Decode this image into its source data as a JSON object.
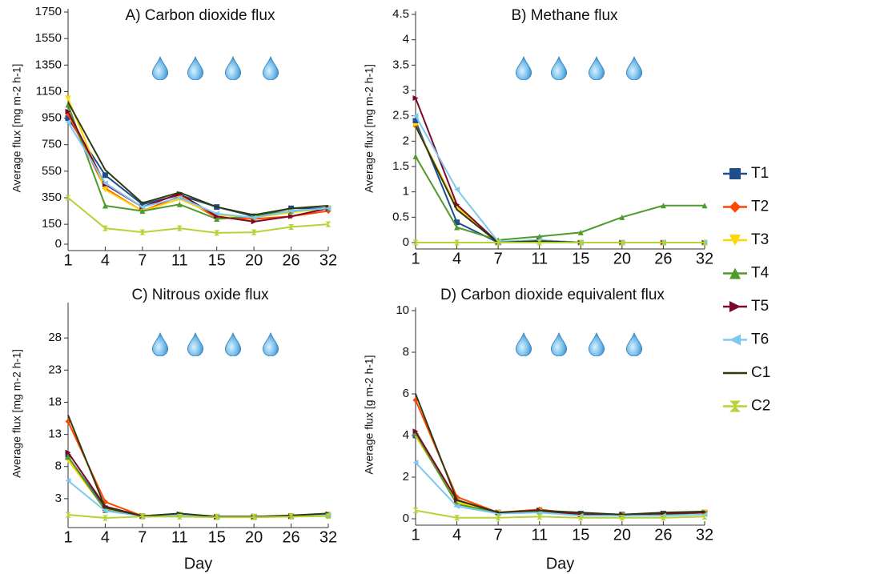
{
  "chart_data": [
    {
      "type": "line",
      "title": "A) Carbon dioxide flux",
      "y_label": "Average flux [mg m-2 h-1]",
      "categories": [
        "1",
        "4",
        "7",
        "11",
        "15",
        "20",
        "26",
        "32"
      ],
      "ylim": [
        0,
        1750
      ],
      "yticks": [
        0,
        150,
        350,
        550,
        750,
        950,
        1150,
        1350,
        1550,
        1750
      ],
      "series": [
        {
          "name": "T1",
          "color": "#1f4e8c",
          "marker": "square",
          "values": [
            950,
            520,
            300,
            370,
            280,
            210,
            270,
            270
          ]
        },
        {
          "name": "T2",
          "color": "#ff4500",
          "marker": "diamond",
          "values": [
            980,
            420,
            250,
            360,
            200,
            190,
            210,
            250
          ]
        },
        {
          "name": "T3",
          "color": "#ffd700",
          "marker": "triangle-down",
          "values": [
            1100,
            410,
            250,
            340,
            220,
            200,
            240,
            270
          ]
        },
        {
          "name": "T4",
          "color": "#4f9a2a",
          "marker": "triangle-up",
          "values": [
            1050,
            290,
            250,
            300,
            190,
            210,
            250,
            270
          ]
        },
        {
          "name": "T5",
          "color": "#7b0a2a",
          "marker": "triangle-right",
          "values": [
            1000,
            450,
            280,
            380,
            210,
            170,
            210,
            270
          ]
        },
        {
          "name": "T6",
          "color": "#7ec8f0",
          "marker": "triangle-left",
          "values": [
            920,
            460,
            280,
            350,
            230,
            200,
            250,
            270
          ]
        },
        {
          "name": "C1",
          "color": "#2d3a0e",
          "marker": "bowtie",
          "values": [
            1070,
            560,
            310,
            390,
            280,
            220,
            270,
            290
          ]
        },
        {
          "name": "C2",
          "color": "#b5d334",
          "marker": "hourglass",
          "values": [
            350,
            120,
            90,
            120,
            85,
            90,
            130,
            150
          ]
        }
      ]
    },
    {
      "type": "line",
      "title": "B) Methane flux",
      "y_label": "Average flux [mg m-2 h-1]",
      "categories": [
        "1",
        "4",
        "7",
        "11",
        "15",
        "20",
        "26",
        "32"
      ],
      "ylim": [
        0,
        4.5
      ],
      "yticks": [
        0,
        0.5,
        1,
        1.5,
        2,
        2.5,
        3,
        3.5,
        4,
        4.5
      ],
      "series": [
        {
          "name": "T1",
          "color": "#1f4e8c",
          "marker": "square",
          "values": [
            2.4,
            0.4,
            0,
            0.05,
            0,
            0,
            0,
            0
          ]
        },
        {
          "name": "T2",
          "color": "#ff4500",
          "marker": "diamond",
          "values": [
            2.3,
            0.7,
            0,
            0.02,
            0,
            0,
            0,
            0
          ]
        },
        {
          "name": "T3",
          "color": "#ffd700",
          "marker": "triangle-down",
          "values": [
            2.3,
            0.7,
            0,
            0.02,
            0,
            0,
            0,
            0
          ]
        },
        {
          "name": "T4",
          "color": "#4f9a2a",
          "marker": "triangle-up",
          "values": [
            1.7,
            0.3,
            0.05,
            0.12,
            0.2,
            0.5,
            0.73,
            0.73
          ]
        },
        {
          "name": "T5",
          "color": "#7b0a2a",
          "marker": "triangle-right",
          "values": [
            2.85,
            0.75,
            0,
            0.03,
            0,
            0,
            0,
            0
          ]
        },
        {
          "name": "T6",
          "color": "#7ec8f0",
          "marker": "triangle-left",
          "values": [
            2.5,
            1.05,
            0.02,
            0.05,
            0,
            0,
            0,
            0
          ]
        },
        {
          "name": "C1",
          "color": "#2d3a0e",
          "marker": "bowtie",
          "values": [
            2.3,
            0.65,
            0,
            0.03,
            0,
            0,
            0,
            0
          ]
        },
        {
          "name": "C2",
          "color": "#b5d334",
          "marker": "hourglass",
          "values": [
            0,
            0,
            0,
            0,
            0,
            0,
            0,
            0
          ]
        }
      ]
    },
    {
      "type": "line",
      "title": "C) Nitrous oxide flux",
      "y_label": "Average flux [mg m-2 h-1]",
      "x_label": "Day",
      "categories": [
        "1",
        "4",
        "7",
        "11",
        "15",
        "20",
        "26",
        "32"
      ],
      "ylim": [
        -0.5,
        33
      ],
      "yticks": [
        3,
        8,
        13,
        18,
        23,
        28
      ],
      "series": [
        {
          "name": "T1",
          "color": "#1f4e8c",
          "marker": "square",
          "values": [
            9.5,
            1.5,
            0.3,
            0.5,
            0.2,
            0.2,
            0.3,
            0.5
          ]
        },
        {
          "name": "T2",
          "color": "#ff4500",
          "marker": "diamond",
          "values": [
            15,
            2.5,
            0.3,
            0.6,
            0.2,
            0.2,
            0.3,
            0.6
          ]
        },
        {
          "name": "T3",
          "color": "#ffd700",
          "marker": "triangle-down",
          "values": [
            9,
            1.3,
            0.3,
            0.5,
            0.2,
            0.2,
            0.3,
            0.5
          ]
        },
        {
          "name": "T4",
          "color": "#4f9a2a",
          "marker": "triangle-up",
          "values": [
            9.5,
            1.2,
            0.3,
            0.5,
            0.2,
            0.2,
            0.3,
            0.5
          ]
        },
        {
          "name": "T5",
          "color": "#7b0a2a",
          "marker": "triangle-right",
          "values": [
            10.2,
            1.8,
            0.3,
            0.6,
            0.2,
            0.2,
            0.3,
            0.6
          ]
        },
        {
          "name": "T6",
          "color": "#7ec8f0",
          "marker": "triangle-left",
          "values": [
            5.8,
            1.1,
            0.3,
            0.5,
            0.2,
            0.2,
            0.3,
            0.5
          ]
        },
        {
          "name": "C1",
          "color": "#2d3a0e",
          "marker": "bowtie",
          "values": [
            16,
            1.6,
            0.3,
            0.7,
            0.2,
            0.2,
            0.4,
            0.7
          ]
        },
        {
          "name": "C2",
          "color": "#b5d334",
          "marker": "hourglass",
          "values": [
            0.5,
            0,
            0.2,
            0.2,
            0.1,
            0.1,
            0.2,
            0.3
          ]
        }
      ]
    },
    {
      "type": "line",
      "title": "D) Carbon dioxide equivalent flux",
      "y_label": "Average flux [g m-2 h-1]",
      "x_label": "Day",
      "categories": [
        "1",
        "4",
        "7",
        "11",
        "15",
        "20",
        "26",
        "32"
      ],
      "ylim": [
        0,
        10
      ],
      "yticks": [
        0,
        2,
        4,
        6,
        8,
        10
      ],
      "series": [
        {
          "name": "T1",
          "color": "#1f4e8c",
          "marker": "square",
          "values": [
            4,
            0.8,
            0.3,
            0.4,
            0.25,
            0.2,
            0.25,
            0.3
          ]
        },
        {
          "name": "T2",
          "color": "#ff4500",
          "marker": "diamond",
          "values": [
            5.7,
            1.05,
            0.3,
            0.45,
            0.2,
            0.2,
            0.2,
            0.3
          ]
        },
        {
          "name": "T3",
          "color": "#ffd700",
          "marker": "triangle-down",
          "values": [
            4,
            0.8,
            0.3,
            0.35,
            0.2,
            0.15,
            0.2,
            0.3
          ]
        },
        {
          "name": "T4",
          "color": "#4f9a2a",
          "marker": "triangle-up",
          "values": [
            4.1,
            0.7,
            0.3,
            0.35,
            0.2,
            0.15,
            0.2,
            0.3
          ]
        },
        {
          "name": "T5",
          "color": "#7b0a2a",
          "marker": "triangle-right",
          "values": [
            4.2,
            0.9,
            0.3,
            0.4,
            0.2,
            0.2,
            0.25,
            0.3
          ]
        },
        {
          "name": "T6",
          "color": "#7ec8f0",
          "marker": "triangle-left",
          "values": [
            2.7,
            0.6,
            0.25,
            0.3,
            0.15,
            0.15,
            0.15,
            0.2
          ]
        },
        {
          "name": "C1",
          "color": "#2d3a0e",
          "marker": "bowtie",
          "values": [
            6,
            0.9,
            0.3,
            0.4,
            0.3,
            0.2,
            0.3,
            0.35
          ]
        },
        {
          "name": "C2",
          "color": "#b5d334",
          "marker": "hourglass",
          "values": [
            0.4,
            0.05,
            0.05,
            0.1,
            0.05,
            0.05,
            0.05,
            0.1
          ]
        }
      ]
    }
  ]
}
